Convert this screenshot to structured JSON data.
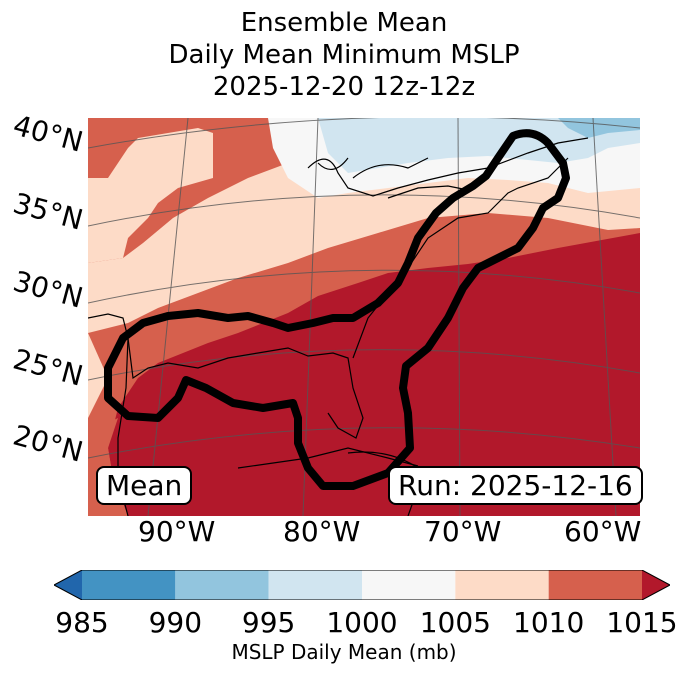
{
  "title": {
    "line1": "Ensemble Mean",
    "line2": "Daily Mean Minimum MSLP",
    "line3": "2025-12-20 12z-12z"
  },
  "map": {
    "latitude_labels": [
      "40°N",
      "35°N",
      "30°N",
      "25°N",
      "20°N"
    ],
    "longitude_labels": [
      "90°W",
      "80°W",
      "70°W",
      "60°W"
    ],
    "mean_label": "Mean",
    "run_label": "Run: 2025-12-16",
    "contour_color": "#000000"
  },
  "colorbar": {
    "label": "MSLP Daily Mean (mb)",
    "ticks": [
      "985",
      "990",
      "995",
      "1000",
      "1005",
      "1010",
      "1015"
    ],
    "bins": [
      {
        "range": "<985",
        "color": "#2166ac"
      },
      {
        "range": "985-990",
        "color": "#4393c3"
      },
      {
        "range": "990-995",
        "color": "#92c5de"
      },
      {
        "range": "995-1000",
        "color": "#d1e5f0"
      },
      {
        "range": "1000-1005",
        "color": "#f7f7f7"
      },
      {
        "range": "1005-1010",
        "color": "#fddbc7"
      },
      {
        "range": "1010-1015",
        "color": "#d6604d"
      },
      {
        "range": ">1015",
        "color": "#b2182b"
      }
    ]
  }
}
